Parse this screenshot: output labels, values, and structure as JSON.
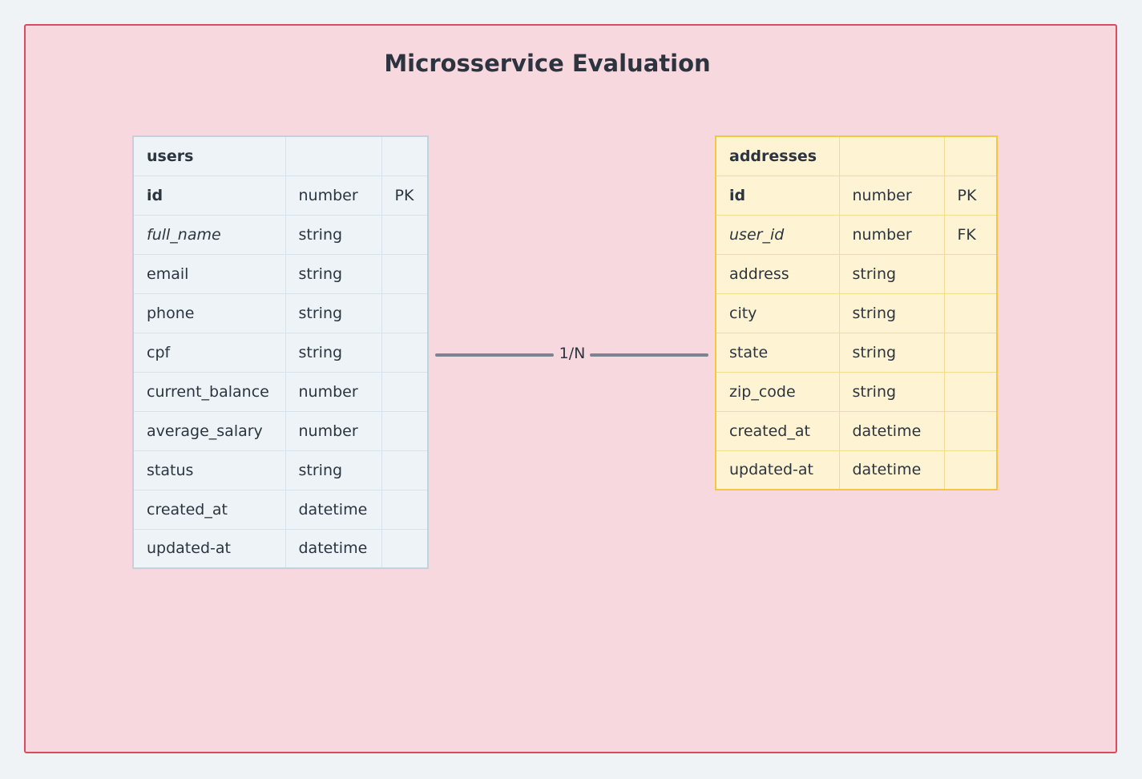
{
  "diagram": {
    "title": "Microsservice Evaluation",
    "relationship": {
      "label": "1/N"
    }
  },
  "tables": {
    "users": {
      "name": "users",
      "rows": [
        {
          "field": "id",
          "type": "number",
          "key": "PK"
        },
        {
          "field": "full_name",
          "type": "string",
          "key": ""
        },
        {
          "field": "email",
          "type": "string",
          "key": ""
        },
        {
          "field": "phone",
          "type": "string",
          "key": ""
        },
        {
          "field": "cpf",
          "type": "string",
          "key": ""
        },
        {
          "field": "current_balance",
          "type": "number",
          "key": ""
        },
        {
          "field": "average_salary",
          "type": "number",
          "key": ""
        },
        {
          "field": "status",
          "type": "string",
          "key": ""
        },
        {
          "field": "created_at",
          "type": "datetime",
          "key": ""
        },
        {
          "field": "updated-at",
          "type": "datetime",
          "key": ""
        }
      ]
    },
    "addresses": {
      "name": "addresses",
      "rows": [
        {
          "field": "id",
          "type": "number",
          "key": "PK"
        },
        {
          "field": "user_id",
          "type": "number",
          "key": "FK"
        },
        {
          "field": "address",
          "type": "string",
          "key": ""
        },
        {
          "field": "city",
          "type": "string",
          "key": ""
        },
        {
          "field": "state",
          "type": "string",
          "key": ""
        },
        {
          "field": "zip_code",
          "type": "string",
          "key": ""
        },
        {
          "field": "created_at",
          "type": "datetime",
          "key": ""
        },
        {
          "field": "updated-at",
          "type": "datetime",
          "key": ""
        }
      ]
    }
  },
  "colors": {
    "frame_fill": "#f7d8de",
    "frame_border": "#dc4a5b",
    "users_fill": "#eef3f7",
    "addresses_fill": "#fef3d2",
    "addresses_border": "#f3c644",
    "connector": "#7b8591"
  }
}
